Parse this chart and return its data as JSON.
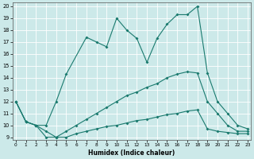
{
  "xlabel": "Humidex (Indice chaleur)",
  "xlim": [
    0,
    23
  ],
  "ylim": [
    9,
    20
  ],
  "xticks": [
    0,
    1,
    2,
    3,
    4,
    5,
    6,
    7,
    8,
    9,
    10,
    11,
    12,
    13,
    14,
    15,
    16,
    17,
    18,
    19,
    20,
    21,
    22,
    23
  ],
  "yticks": [
    9,
    10,
    11,
    12,
    13,
    14,
    15,
    16,
    17,
    18,
    19,
    20
  ],
  "bg_color": "#cce9e9",
  "line_color": "#1a7a6e",
  "line1": {
    "x": [
      0,
      1,
      2,
      3,
      4,
      5,
      6,
      7,
      8,
      9,
      10,
      11,
      12,
      13,
      14,
      15,
      16,
      17,
      18,
      19,
      20,
      21,
      22,
      23
    ],
    "y": [
      12,
      10.3,
      10,
      9,
      9,
      9,
      9.3,
      9.5,
      9.7,
      9.9,
      10,
      10.2,
      10.4,
      10.5,
      10.7,
      10.9,
      11,
      11.2,
      11.3,
      9.7,
      9.5,
      9.4,
      9.3,
      9.3
    ]
  },
  "line2": {
    "x": [
      0,
      1,
      2,
      3,
      4,
      5,
      6,
      7,
      8,
      9,
      10,
      11,
      12,
      13,
      14,
      15,
      16,
      17,
      18,
      19,
      20,
      21,
      22,
      23
    ],
    "y": [
      12,
      10.3,
      10,
      9.5,
      9,
      9.5,
      10,
      10.5,
      11,
      11.5,
      12,
      12.5,
      12.8,
      13.2,
      13.5,
      14,
      14.3,
      14.5,
      14.4,
      12,
      11,
      10,
      9.5,
      9.5
    ]
  },
  "line3": {
    "x": [
      0,
      1,
      2,
      3,
      4,
      5,
      7,
      8,
      9,
      10,
      11,
      12,
      13,
      14,
      15,
      16,
      17,
      18,
      19,
      20,
      21,
      22,
      23
    ],
    "y": [
      12,
      10.3,
      10,
      10,
      12,
      14.3,
      17.4,
      17,
      16.6,
      19,
      18,
      17.3,
      15.3,
      17.3,
      18.5,
      19.3,
      19.3,
      20,
      14.4,
      12,
      11,
      10,
      9.7
    ]
  }
}
